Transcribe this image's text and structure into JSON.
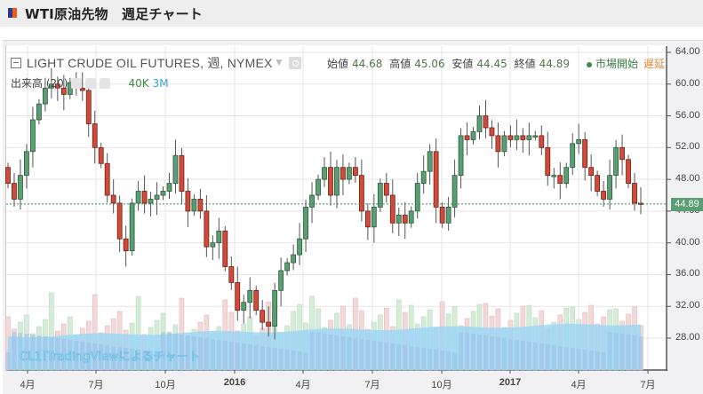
{
  "header": {
    "title": "WTI原油先物　週足チャート"
  },
  "legend": {
    "symbol": "LIGHT CRUDE OIL FUTURES, 週, NYMEX",
    "open_label": "始値",
    "open": "44.68",
    "high_label": "高値",
    "high": "45.06",
    "low_label": "安値",
    "low": "44.45",
    "close_label": "終値",
    "close": "44.89",
    "market_status": "市場開始",
    "delay": "遅延"
  },
  "volume_legend": {
    "label": "出来高 (20)",
    "vol": "40K",
    "ma": "3M"
  },
  "watermark": "CL1!TradingViewによるチャート",
  "current_price": "44.89",
  "colors": {
    "up": "#5a9e74",
    "down": "#d24b3a",
    "volume_ma": "#9fd6f5",
    "up_vol": "#d6ecd8",
    "down_vol": "#f2d8d8"
  },
  "chart_data": {
    "type": "candlestick",
    "title": "WTI原油先物　週足チャート",
    "subtitle": "LIGHT CRUDE OIL FUTURES, 週, NYMEX",
    "xlabel": "",
    "ylabel": "",
    "ylim": [
      24,
      64
    ],
    "y_ticks": [
      "64.00",
      "60.00",
      "56.00",
      "52.00",
      "48.00",
      "44.00",
      "40.00",
      "36.00",
      "32.00",
      "28.00"
    ],
    "x_ticks": [
      "4月",
      "7月",
      "10月",
      "2016",
      "4月",
      "7月",
      "10月",
      "2017",
      "4月",
      "7月"
    ],
    "grid": true,
    "last": {
      "open": 44.68,
      "high": 45.06,
      "low": 44.45,
      "close": 44.89
    },
    "approx_weekly_closes": [
      47.5,
      45.5,
      48.5,
      51.5,
      55.5,
      57.5,
      59.5,
      60.0,
      59.5,
      58.7,
      60.2,
      59.5,
      59.2,
      55.0,
      52.0,
      50.0,
      46.0,
      45.0,
      40.5,
      39.0,
      45.0,
      46.5,
      45.0,
      45.5,
      46.0,
      46.5,
      47.5,
      51.0,
      46.5,
      44.0,
      45.5,
      44.0,
      39.5,
      40.0,
      41.5,
      37.0,
      35.0,
      31.5,
      32.5,
      34.0,
      31.5,
      30.0,
      29.5,
      34.0,
      36.5,
      37.5,
      38.5,
      40.5,
      44.5,
      46.0,
      48.0,
      49.5,
      46.0,
      49.5,
      48.0,
      49.5,
      48.5,
      44.0,
      42.0,
      44.5,
      47.5,
      46.0,
      42.5,
      43.5,
      42.5,
      44.0,
      47.5,
      49.0,
      51.5,
      44.5,
      42.5,
      44.5,
      48.5,
      53.5,
      53.0,
      54.0,
      56.0,
      54.5,
      53.5,
      51.5,
      53.5,
      53.0,
      53.5,
      53.0,
      53.5,
      53.5,
      52.0,
      48.5,
      48.5,
      47.5,
      49.5,
      52.5,
      53.0,
      49.5,
      48.5,
      46.5,
      45.5,
      48.5,
      52.0,
      50.5,
      47.5,
      45.0,
      44.89
    ]
  }
}
